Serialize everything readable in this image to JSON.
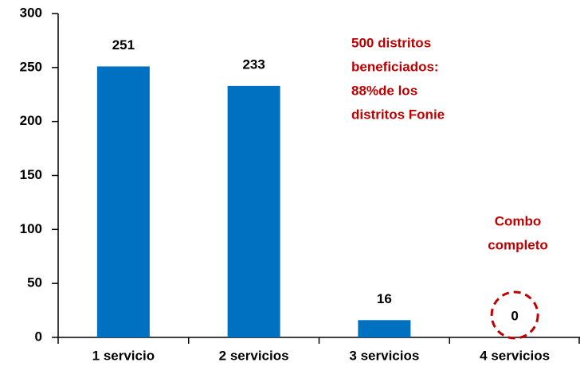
{
  "chart_data": {
    "type": "bar",
    "categories": [
      "1 servicio",
      "2 servicios",
      "3 servicios",
      "4 servicios"
    ],
    "values": [
      251,
      233,
      16,
      0
    ],
    "color": "#0070c0",
    "ylim": [
      0,
      300
    ],
    "yticks": [
      0,
      50,
      100,
      150,
      200,
      250,
      300
    ],
    "grid": false,
    "annotations": [
      {
        "lines": [
          "500 distritos",
          "beneficiados:",
          "88%de los",
          "distritos Fonie"
        ],
        "color": "#c00000"
      },
      {
        "lines": [
          "Combo",
          "completo"
        ],
        "color": "#c00000"
      }
    ]
  }
}
